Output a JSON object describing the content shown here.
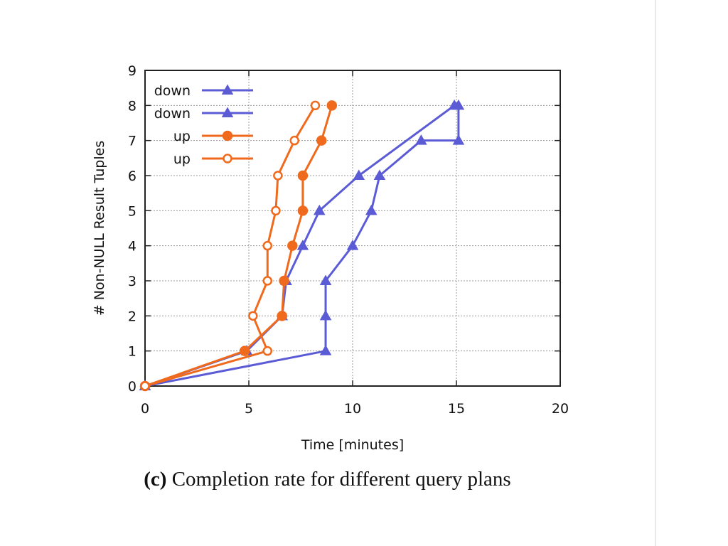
{
  "chart_data": {
    "type": "line",
    "xlabel": "Time [minutes]",
    "ylabel": "# Non-NULL Result Tuples",
    "xlim": [
      0,
      20
    ],
    "ylim": [
      0,
      9
    ],
    "xticks": [
      0,
      5,
      10,
      15,
      20
    ],
    "yticks": [
      0,
      1,
      2,
      3,
      4,
      5,
      6,
      7,
      8,
      9
    ],
    "grid": true,
    "legend_position": "top-left",
    "series": [
      {
        "name": "down",
        "color": "#5b5bd6",
        "marker": "triangle",
        "filled": true,
        "x": [
          0,
          8.7,
          8.7,
          8.7,
          10.0,
          10.9,
          11.3,
          13.3,
          15.1,
          15.1
        ],
        "y": [
          0,
          1,
          2,
          3,
          4,
          5,
          6,
          7,
          7,
          8
        ]
      },
      {
        "name": "down",
        "color": "#5b5bd6",
        "marker": "triangle",
        "filled": true,
        "x": [
          0,
          4.9,
          6.6,
          6.8,
          7.6,
          8.4,
          10.3,
          14.9
        ],
        "y": [
          0,
          1,
          2,
          3,
          4,
          5,
          6,
          8
        ]
      },
      {
        "name": "up",
        "color": "#f06a1e",
        "marker": "circle",
        "filled": true,
        "x": [
          0,
          4.8,
          6.6,
          6.7,
          7.1,
          7.6,
          7.6,
          8.5,
          9.0
        ],
        "y": [
          0,
          1,
          2,
          3,
          4,
          5,
          6,
          7,
          8
        ]
      },
      {
        "name": "up",
        "color": "#f06a1e",
        "marker": "circle",
        "filled": false,
        "x": [
          0,
          5.9,
          5.2,
          5.9,
          5.9,
          6.3,
          6.4,
          7.2,
          8.2
        ],
        "y": [
          0,
          1,
          2,
          3,
          4,
          5,
          6,
          7,
          8
        ]
      }
    ]
  },
  "caption": {
    "label": "(c)",
    "text": "Completion rate for different query plans"
  }
}
